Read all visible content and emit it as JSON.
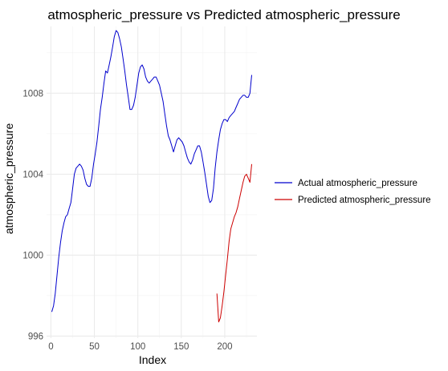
{
  "chart_data": {
    "type": "line",
    "title": "atmospheric_pressure vs Predicted atmospheric_pressure",
    "xlabel": "Index",
    "ylabel": "atmospheric_pressure",
    "xlim": [
      -5,
      237
    ],
    "ylim": [
      995.9,
      1011.3
    ],
    "x_ticks": [
      0,
      50,
      100,
      150,
      200
    ],
    "y_ticks": [
      996,
      1000,
      1004,
      1008
    ],
    "grid": true,
    "legend_position": "right",
    "series": [
      {
        "name": "Actual atmospheric_pressure",
        "color": "#0000cd",
        "x": [
          1,
          3,
          5,
          7,
          9,
          11,
          13,
          15,
          17,
          19,
          21,
          23,
          25,
          27,
          29,
          31,
          33,
          35,
          37,
          39,
          41,
          43,
          45,
          47,
          49,
          51,
          53,
          55,
          57,
          59,
          61,
          63,
          65,
          67,
          69,
          71,
          73,
          75,
          77,
          79,
          81,
          83,
          85,
          87,
          89,
          91,
          93,
          95,
          97,
          99,
          101,
          103,
          105,
          107,
          109,
          111,
          113,
          115,
          117,
          119,
          121,
          123,
          125,
          127,
          129,
          131,
          133,
          135,
          137,
          139,
          141,
          143,
          145,
          147,
          149,
          151,
          153,
          155,
          157,
          159,
          161,
          163,
          165,
          167,
          169,
          171,
          173,
          175,
          177,
          179,
          181,
          183,
          185,
          187,
          189,
          191,
          193,
          195,
          197,
          199,
          201,
          203,
          205,
          207,
          209,
          211,
          213,
          215,
          217,
          219,
          221,
          223,
          225,
          227,
          229,
          231
        ],
        "y": [
          997.2,
          997.5,
          998.1,
          999.0,
          999.9,
          1000.6,
          1001.2,
          1001.6,
          1001.9,
          1002.0,
          1002.3,
          1002.6,
          1003.3,
          1004.0,
          1004.3,
          1004.4,
          1004.5,
          1004.4,
          1004.2,
          1003.8,
          1003.5,
          1003.4,
          1003.4,
          1003.8,
          1004.5,
          1005.0,
          1005.6,
          1006.4,
          1007.2,
          1007.8,
          1008.5,
          1009.1,
          1009.0,
          1009.4,
          1009.8,
          1010.3,
          1010.8,
          1011.1,
          1011.0,
          1010.7,
          1010.3,
          1009.7,
          1009.1,
          1008.4,
          1007.8,
          1007.2,
          1007.2,
          1007.4,
          1007.8,
          1008.4,
          1009.0,
          1009.3,
          1009.4,
          1009.2,
          1008.8,
          1008.6,
          1008.5,
          1008.6,
          1008.7,
          1008.8,
          1008.8,
          1008.6,
          1008.4,
          1008.0,
          1007.6,
          1007.0,
          1006.4,
          1005.9,
          1005.7,
          1005.4,
          1005.1,
          1005.4,
          1005.7,
          1005.8,
          1005.7,
          1005.6,
          1005.4,
          1005.1,
          1004.8,
          1004.6,
          1004.5,
          1004.7,
          1005.0,
          1005.2,
          1005.4,
          1005.4,
          1005.1,
          1004.6,
          1004.1,
          1003.5,
          1002.9,
          1002.6,
          1002.7,
          1003.3,
          1004.3,
          1005.1,
          1005.7,
          1006.2,
          1006.5,
          1006.7,
          1006.7,
          1006.6,
          1006.8,
          1006.9,
          1007.0,
          1007.1,
          1007.3,
          1007.5,
          1007.7,
          1007.8,
          1007.9,
          1007.9,
          1007.8,
          1007.8,
          1008.0,
          1008.9
        ]
      },
      {
        "name": "Predicted atmospheric_pressure",
        "color": "#cd0000",
        "x": [
          191,
          193,
          195,
          197,
          199,
          201,
          203,
          205,
          207,
          209,
          211,
          213,
          215,
          217,
          219,
          221,
          223,
          225,
          227,
          229,
          231
        ],
        "y": [
          998.1,
          996.7,
          996.9,
          997.5,
          998.2,
          999.0,
          999.8,
          1000.7,
          1001.3,
          1001.6,
          1001.9,
          1002.1,
          1002.4,
          1002.8,
          1003.2,
          1003.6,
          1003.9,
          1004.0,
          1003.8,
          1003.6,
          1004.5
        ]
      }
    ]
  }
}
